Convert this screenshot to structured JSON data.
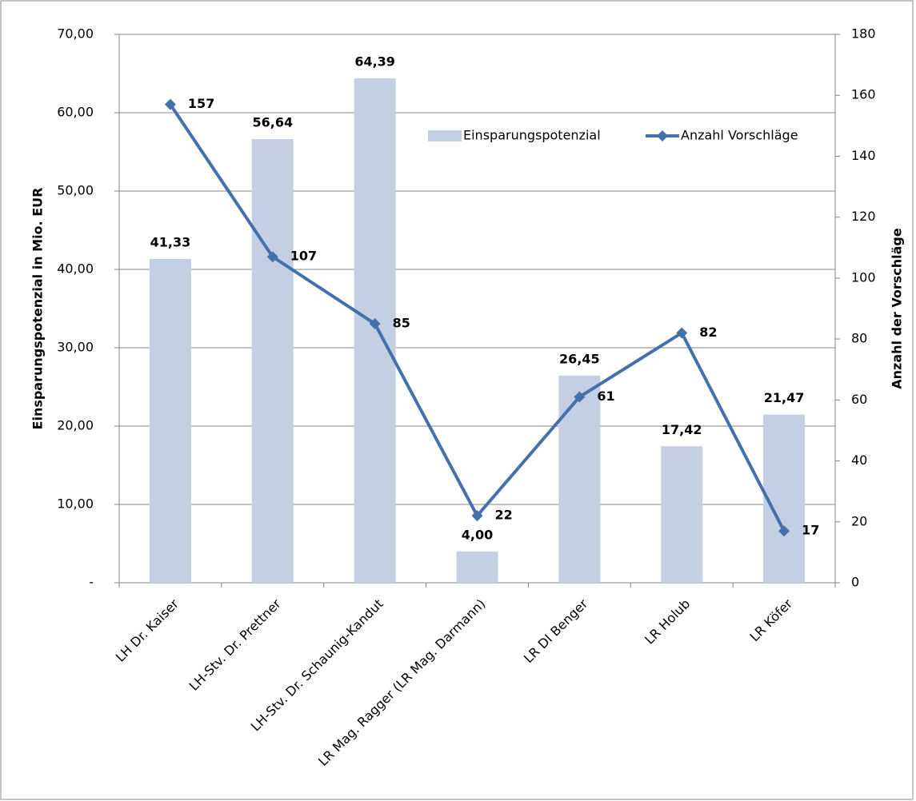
{
  "chart_data": {
    "type": "bar",
    "categories": [
      "LH Dr. Kaiser",
      "LH-Stv. Dr. Prettner",
      "LH-Stv. Dr. Schaunig-Kandut",
      "LR Mag. Ragger (LR Mag. Darmann)",
      "LR DI Benger",
      "LR Holub",
      "LR Köfer"
    ],
    "series": [
      {
        "name": "Einsparungspotenzial",
        "type": "bar",
        "color": "#c5cfe3",
        "label_color": "#95b0d6",
        "values": [
          41.33,
          56.64,
          64.39,
          4.0,
          26.45,
          17.42,
          21.47
        ],
        "value_labels": [
          "41,33",
          "56,64",
          "64,39",
          "4,00",
          "26,45",
          "17,42",
          "21,47"
        ]
      },
      {
        "name": "Anzahl Vorschläge",
        "type": "line",
        "axis": "y2",
        "color": "#4470ab",
        "label_color": "#1f3863",
        "values": [
          157,
          107,
          85,
          22,
          61,
          82,
          17
        ]
      }
    ],
    "ylabel": "Einsparungspotenzial in Mio. EUR",
    "y2label": "Anzahl der Vorschläge",
    "ylim": [
      0,
      70
    ],
    "yticks": [
      {
        "value": 0,
        "label": "-"
      },
      {
        "value": 10,
        "label": "10,00"
      },
      {
        "value": 20,
        "label": "20,00"
      },
      {
        "value": 30,
        "label": "30,00"
      },
      {
        "value": 40,
        "label": "40,00"
      },
      {
        "value": 50,
        "label": "50,00"
      },
      {
        "value": 60,
        "label": "60,00"
      },
      {
        "value": 70,
        "label": "70,00"
      }
    ],
    "y2lim": [
      0,
      180
    ],
    "y2ticks": [
      0,
      20,
      40,
      60,
      80,
      100,
      120,
      140,
      160,
      180
    ],
    "grid": true,
    "legend": "top-right"
  }
}
